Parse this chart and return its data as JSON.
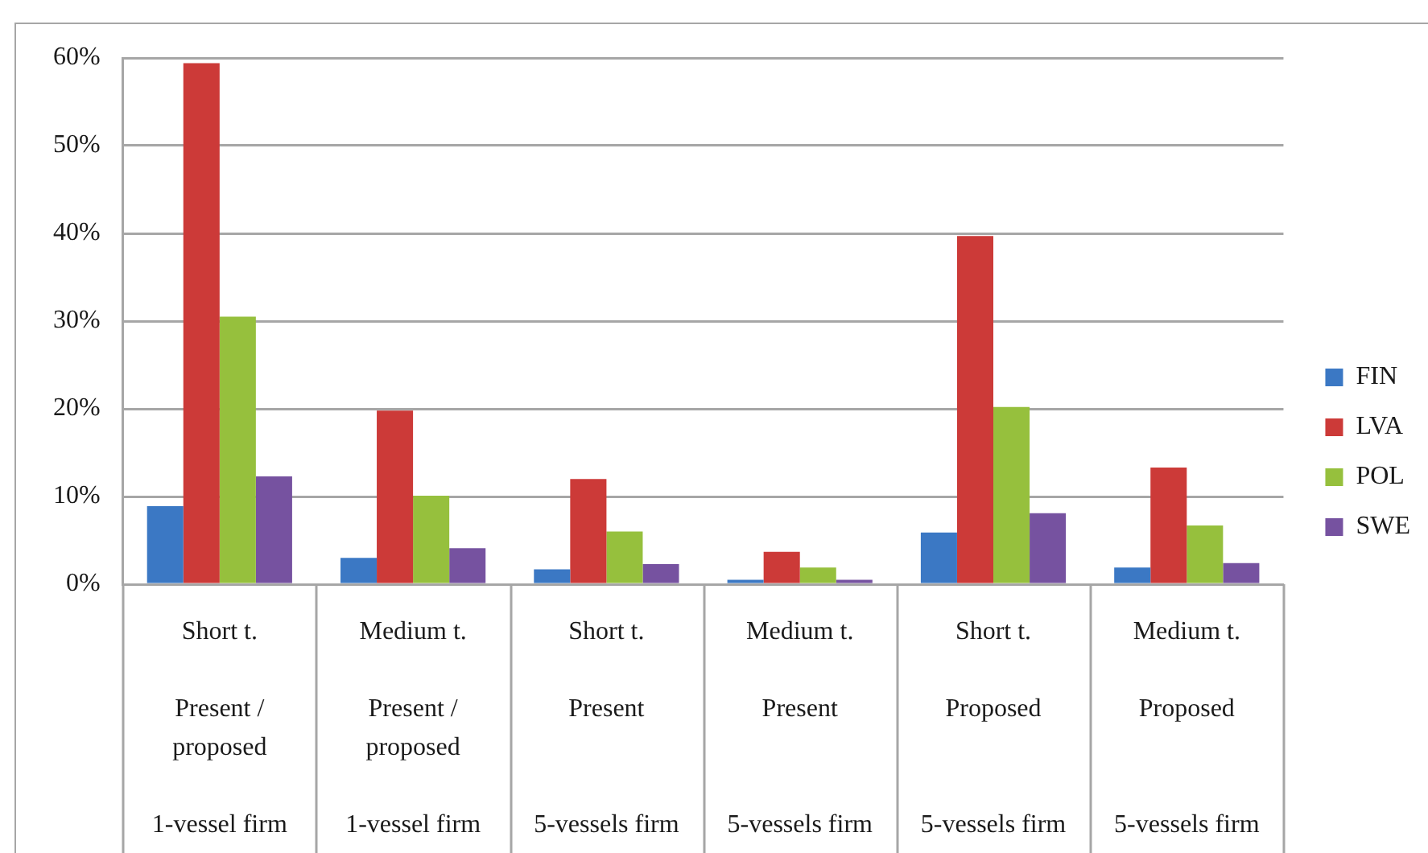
{
  "chart_data": {
    "type": "bar",
    "categories": [
      "Short t.\nPresent / proposed\n1-vessel firm",
      "Medium t.\nPresent / proposed\n1-vessel firm",
      "Short t.\nPresent\n5-vessels firm",
      "Medium t.\nPresent\n5-vessels firm",
      "Short t.\nProposed\n5-vessels firm",
      "Medium t.\nProposed\n5-vessels firm"
    ],
    "series": [
      {
        "name": "FIN",
        "color": "#3b78c4",
        "values": [
          8.9,
          3.0,
          1.7,
          0.5,
          5.9,
          1.9
        ]
      },
      {
        "name": "LVA",
        "color": "#cc3a38",
        "values": [
          59.4,
          19.8,
          12.0,
          3.7,
          39.7,
          13.3
        ]
      },
      {
        "name": "POL",
        "color": "#96c03d",
        "values": [
          30.5,
          10.1,
          6.0,
          1.9,
          20.2,
          6.7
        ]
      },
      {
        "name": "SWE",
        "color": "#7652a0",
        "values": [
          12.3,
          4.1,
          2.3,
          0.5,
          8.1,
          2.4
        ]
      }
    ],
    "ylim": [
      0,
      60
    ],
    "yticks": [
      {
        "value": 0,
        "label": "0%"
      },
      {
        "value": 10,
        "label": "10%"
      },
      {
        "value": 20,
        "label": "20%"
      },
      {
        "value": 30,
        "label": "30%"
      },
      {
        "value": 40,
        "label": "40%"
      },
      {
        "value": 50,
        "label": "50%"
      },
      {
        "value": 60,
        "label": "60%"
      }
    ],
    "grid": "y",
    "legend": "right"
  }
}
